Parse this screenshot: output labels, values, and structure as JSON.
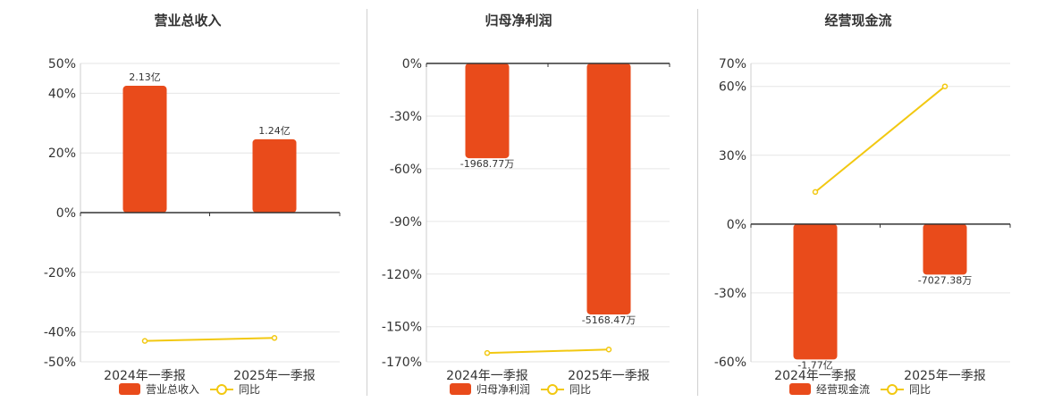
{
  "colors": {
    "bar": "#E94B1B",
    "line": "#F2C811",
    "grid": "#e6e6e6",
    "axis": "#333333"
  },
  "chart_data": [
    {
      "type": "bar",
      "title": "营业总收入",
      "categories": [
        "2024年一季报",
        "2025年一季报"
      ],
      "series": [
        {
          "name": "营业总收入",
          "type": "bar",
          "values": [
            42.5,
            24.6
          ],
          "data_labels": [
            "2.13亿",
            "1.24亿"
          ]
        },
        {
          "name": "同比",
          "type": "line",
          "values": [
            -43,
            -42
          ]
        }
      ],
      "ylim": [
        -50,
        50
      ],
      "yticks": [
        50,
        40,
        20,
        0,
        -20,
        -40,
        -50
      ],
      "ytick_labels": [
        "50%",
        "40%",
        "20%",
        "0%",
        "-20%",
        "-40%",
        "-50%"
      ],
      "legend": {
        "position": "bottom",
        "entries": [
          "营业总收入",
          "同比"
        ]
      }
    },
    {
      "type": "bar",
      "title": "归母净利润",
      "categories": [
        "2024年一季报",
        "2025年一季报"
      ],
      "series": [
        {
          "name": "归母净利润",
          "type": "bar",
          "values": [
            -54,
            -143
          ],
          "data_labels": [
            "-1968.77万",
            "-5168.47万"
          ]
        },
        {
          "name": "同比",
          "type": "line",
          "values": [
            -165,
            -163
          ]
        }
      ],
      "ylim": [
        -170,
        0
      ],
      "yticks": [
        0,
        -30,
        -60,
        -90,
        -120,
        -150,
        -170
      ],
      "ytick_labels": [
        "0%",
        "-30%",
        "-60%",
        "-90%",
        "-120%",
        "-150%",
        "-170%"
      ],
      "legend": {
        "position": "bottom",
        "entries": [
          "归母净利润",
          "同比"
        ]
      }
    },
    {
      "type": "bar",
      "title": "经营现金流",
      "categories": [
        "2024年一季报",
        "2025年一季报"
      ],
      "series": [
        {
          "name": "经营现金流",
          "type": "bar",
          "values": [
            -59,
            -22
          ],
          "data_labels": [
            "-1.77亿",
            "-7027.38万"
          ]
        },
        {
          "name": "同比",
          "type": "line",
          "values": [
            14,
            60
          ]
        }
      ],
      "ylim": [
        -60,
        70
      ],
      "yticks": [
        70,
        60,
        30,
        0,
        -30,
        -60
      ],
      "ytick_labels": [
        "70%",
        "60%",
        "30%",
        "0%",
        "-30%",
        "-60%"
      ],
      "legend": {
        "position": "bottom",
        "entries": [
          "经营现金流",
          "同比"
        ]
      }
    }
  ]
}
